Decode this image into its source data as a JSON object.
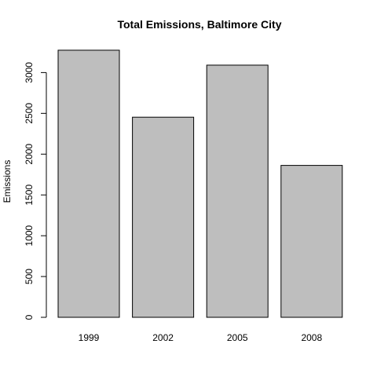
{
  "chart_data": {
    "type": "bar",
    "title": "Total Emissions, Baltimore City",
    "xlabel": "",
    "ylabel": "Emissions",
    "categories": [
      "1999",
      "2002",
      "2005",
      "2008"
    ],
    "values": [
      3274,
      2453,
      3091,
      1862
    ],
    "y_ticks": [
      "0",
      "500",
      "1000",
      "1500",
      "2000",
      "2500",
      "3000"
    ],
    "ylim": [
      0,
      3437
    ],
    "grid": false,
    "legend": "none",
    "colors": {
      "bar_fill": "#bebebe",
      "bar_stroke": "#000000",
      "axis": "#000000",
      "background": "#ffffff"
    }
  }
}
